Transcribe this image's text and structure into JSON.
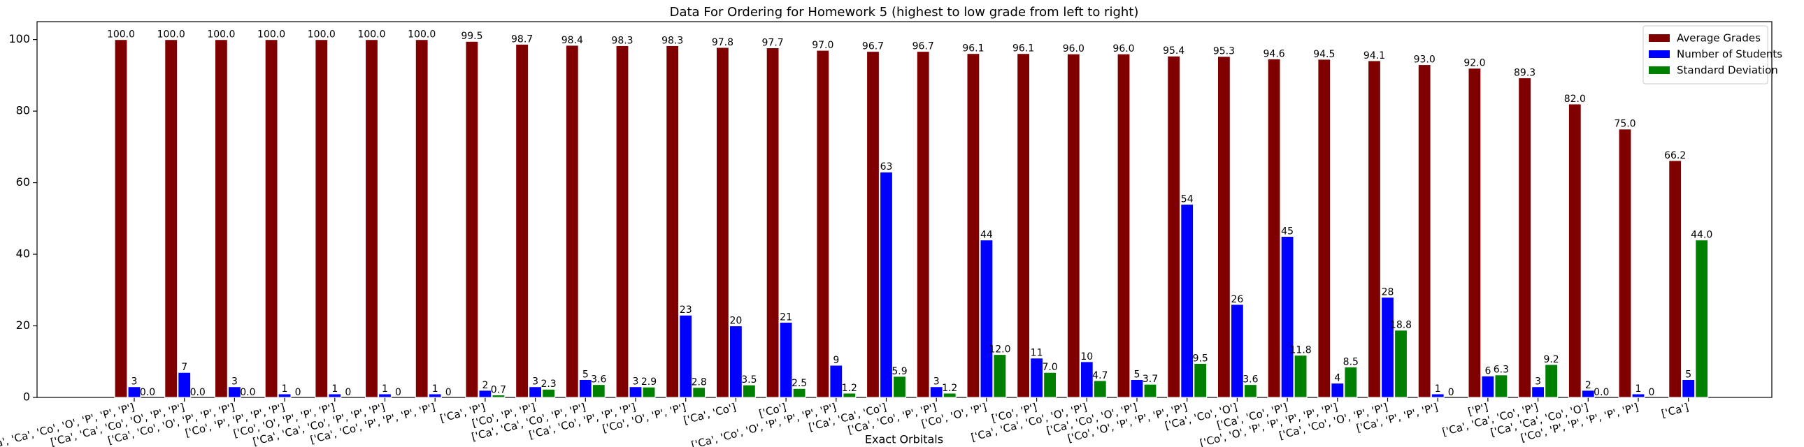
{
  "chart_data": {
    "type": "bar",
    "title": "Data For Ordering for Homework 5 (highest to low grade from left to right)",
    "x_label": "Exact Orbitals",
    "categories": [
      "['Ca', 'Ca', 'Co', 'O', 'P', 'P', 'P']",
      "['Ca', 'Ca', 'Co', 'O', 'P', 'P']",
      "['Ca', 'Co', 'O', 'P', 'P', 'P']",
      "['Co', 'P', 'P', 'P', 'P']",
      "['Co', 'O', 'P', 'P', 'P']",
      "['Ca', 'Ca', 'Co', 'P', 'P', 'P']",
      "['Ca', 'Co', 'P', 'P', 'P', 'P']",
      "['Ca', 'P']",
      "['Co', 'P', 'P']",
      "['Ca', 'Ca', 'Co', 'P', 'P']",
      "['Ca', 'Co', 'P', 'P', 'P']",
      "['Co', 'O', 'P', 'P']",
      "['Ca', 'Co']",
      "['Co']",
      "['Ca', 'Co', 'O', 'P', 'P', 'P', 'P']",
      "['Ca', 'Ca', 'Co']",
      "['Ca', 'Co', 'P', 'P']",
      "['Co', 'O', 'P']",
      "['Co', 'P']",
      "['Ca', 'Ca', 'Co', 'O', 'P']",
      "['Ca', 'Co', 'O', 'P']",
      "['Co', 'O', 'P', 'P', 'P', 'P']",
      "['Ca', 'Co', 'O']",
      "['Ca', 'Co', 'P']",
      "['Co', 'O', 'P', 'P', 'P', 'P', 'P']",
      "['Ca', 'Co', 'O', 'P', 'P']",
      "['Ca', 'P', 'P', 'P']",
      "['P']",
      "['Ca', 'Ca', 'Co', 'P']",
      "['Ca', 'Ca', 'Co', 'O']",
      "['Co', 'P', 'P', 'P', 'P', 'P']",
      "['Ca']"
    ],
    "series": [
      {
        "name": "Average Grades",
        "color": "#800000",
        "values": [
          100,
          100,
          100,
          100,
          100,
          100,
          100,
          99.5,
          98.7,
          98.4,
          98.3,
          98.3,
          97.8,
          97.7,
          97.0,
          96.7,
          96.7,
          96.1,
          96.1,
          96.0,
          96.0,
          95.4,
          95.3,
          94.6,
          94.5,
          94.1,
          93.0,
          92.0,
          89.3,
          82.0,
          75.0,
          66.2
        ],
        "value_labels": [
          "100.0",
          "100.0",
          "100.0",
          "100.0",
          "100.0",
          "100.0",
          "100.0",
          "99.5",
          "98.7",
          "98.4",
          "98.3",
          "98.3",
          "97.8",
          "97.7",
          "97.0",
          "96.7",
          "96.7",
          "96.1",
          "96.1",
          "96.0",
          "96.0",
          "95.4",
          "95.3",
          "94.6",
          "94.5",
          "94.1",
          "93.0",
          "92.0",
          "89.3",
          "82.0",
          "75.0",
          "66.2"
        ]
      },
      {
        "name": "Number of Students",
        "color": "#0000ff",
        "values": [
          3,
          7,
          3,
          1,
          1,
          1,
          1,
          2,
          3,
          5,
          3,
          23,
          20,
          21,
          9,
          63,
          3,
          44,
          11,
          10,
          5,
          54,
          26,
          45,
          4,
          28,
          1,
          6,
          3,
          2,
          1,
          5
        ]
      },
      {
        "name": "Standard Deviation",
        "color": "#008000",
        "values": [
          0,
          0,
          0,
          0,
          0,
          0,
          0,
          0.7,
          2.3,
          3.6,
          2.9,
          2.8,
          3.5,
          2.5,
          1.2,
          5.9,
          1.2,
          12.0,
          7.0,
          4.7,
          3.7,
          9.5,
          3.6,
          11.8,
          8.5,
          18.8,
          0,
          6.3,
          9.2,
          0,
          0,
          44.0
        ],
        "value_labels": [
          "0.0",
          "0.0",
          "0.0",
          "0",
          "0",
          "0",
          "0",
          "0.7",
          "2.3",
          "3.6",
          "2.9",
          "2.8",
          "3.5",
          "2.5",
          "1.2",
          "5.9",
          "1.2",
          "12.0",
          "7.0",
          "4.7",
          "3.7",
          "9.5",
          "3.6",
          "11.8",
          "8.5",
          "18.8",
          "0",
          "6.3",
          "9.2",
          "0.0",
          "0",
          "44.0"
        ]
      }
    ],
    "ylim": [
      0,
      105
    ],
    "yticks": [
      0,
      20,
      40,
      60,
      80,
      100
    ],
    "grid": false,
    "legend": "upper right"
  }
}
